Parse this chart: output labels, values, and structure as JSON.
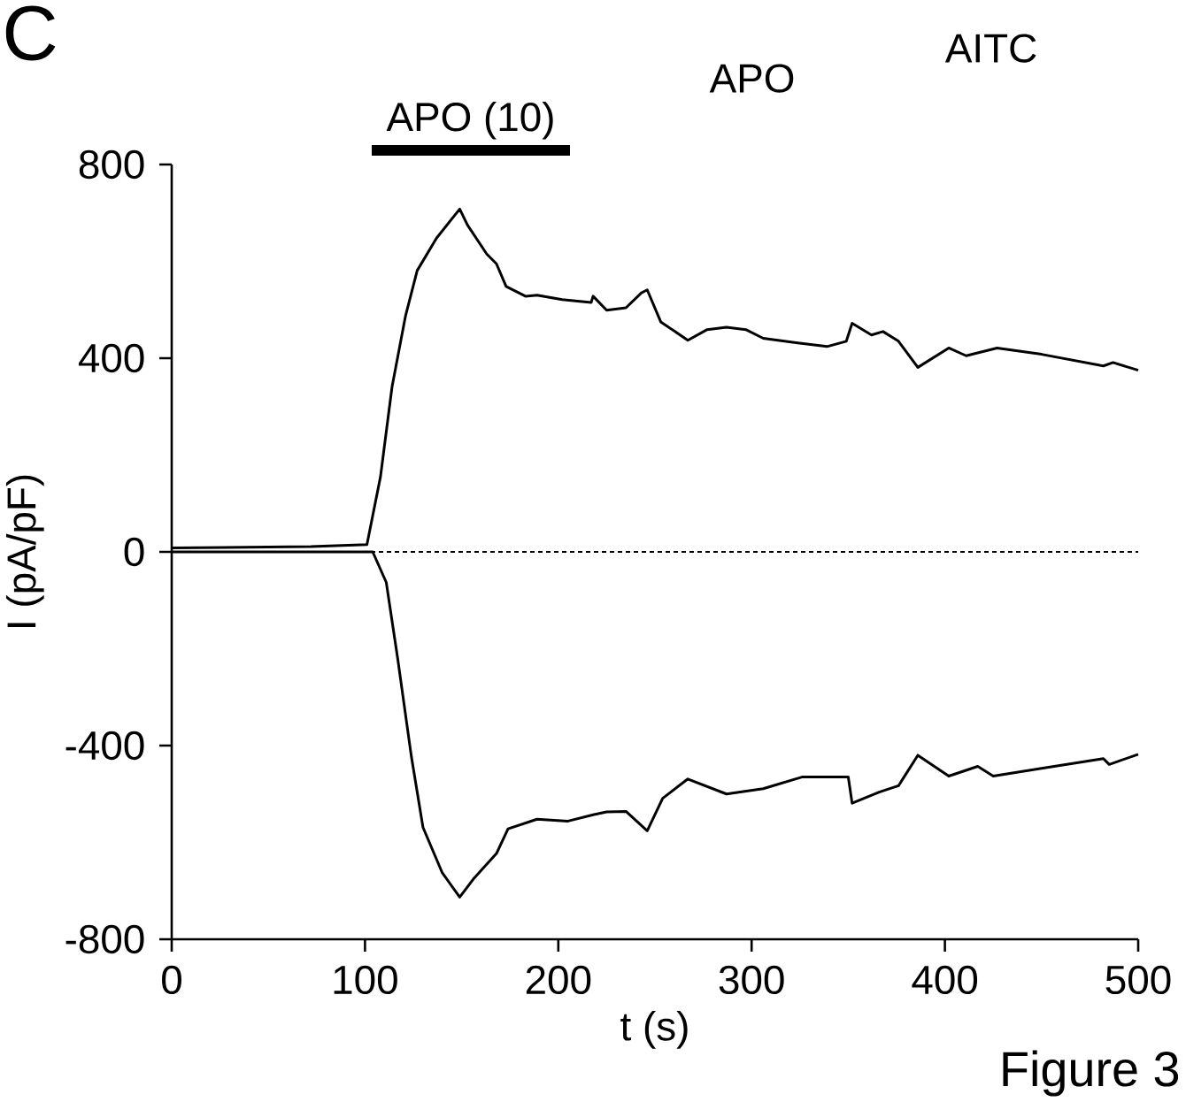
{
  "chart_data": {
    "type": "line",
    "xlabel": "t (s)",
    "ylabel": "I (pA/pF)",
    "xlim": [
      0,
      500
    ],
    "xticks": [
      0,
      100,
      200,
      300,
      400,
      500
    ],
    "ylim": [
      -800,
      800
    ],
    "yticks": [
      -800,
      -400,
      0,
      400,
      800
    ],
    "series": [
      {
        "color": "#000000",
        "x": [
          0,
          72,
          101,
          108,
          114,
          121,
          127,
          137,
          149,
          153,
          163,
          168,
          173,
          183,
          189,
          202,
          217,
          218,
          225,
          235,
          243,
          246,
          253,
          267,
          277,
          287,
          297,
          306,
          323,
          339,
          349,
          352,
          362,
          368,
          376,
          386,
          402,
          411,
          427,
          450,
          482,
          487,
          500
        ],
        "values": [
          8,
          11,
          15,
          155,
          341,
          488,
          581,
          648,
          708,
          675,
          615,
          595,
          548,
          528,
          530,
          521,
          515,
          528,
          499,
          504,
          535,
          541,
          475,
          437,
          459,
          464,
          459,
          441,
          432,
          424,
          435,
          472,
          448,
          455,
          435,
          381,
          421,
          405,
          421,
          408,
          384,
          391,
          375
        ]
      },
      {
        "color": "#000000",
        "x": [
          0,
          104,
          111,
          117,
          124,
          130,
          140,
          149,
          156,
          168,
          174,
          189,
          205,
          218,
          225,
          235,
          246,
          254,
          267,
          287,
          306,
          326,
          350,
          352,
          366,
          376,
          386,
          402,
          417,
          425,
          450,
          482,
          485,
          500
        ],
        "values": [
          0,
          0,
          -63,
          -223,
          -423,
          -569,
          -663,
          -713,
          -676,
          -623,
          -572,
          -552,
          -556,
          -543,
          -537,
          -536,
          -576,
          -509,
          -469,
          -500,
          -489,
          -465,
          -465,
          -519,
          -496,
          -483,
          -420,
          -463,
          -443,
          -463,
          -447,
          -427,
          -439,
          -418
        ]
      }
    ],
    "ref_lines": [
      {
        "axis": "y",
        "value": 0,
        "line_style": "dotted"
      }
    ],
    "annotations": [
      "C",
      "APO",
      "AITC",
      "Figure 3",
      "APO (10)"
    ]
  }
}
